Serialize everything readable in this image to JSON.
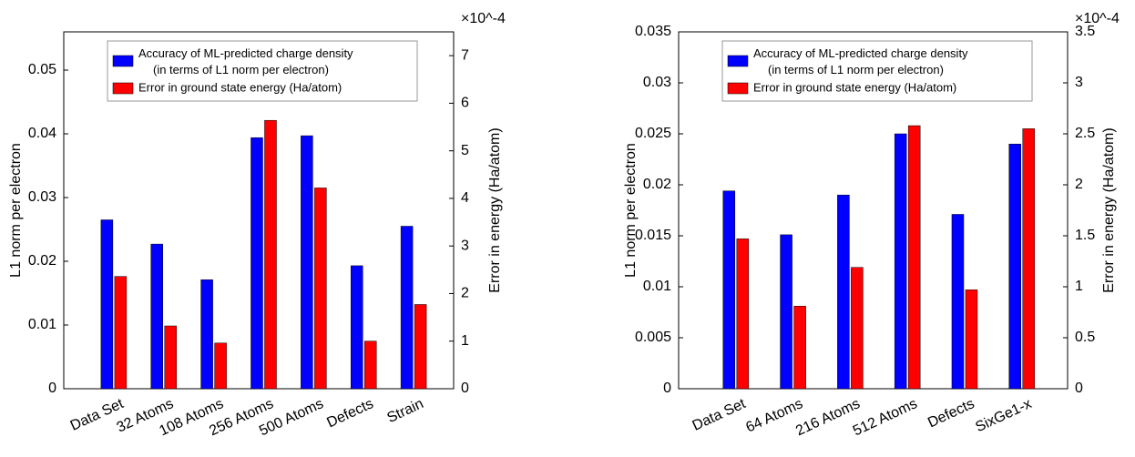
{
  "chart_data": [
    {
      "type": "bar",
      "categories": [
        "Data Set",
        "32 Atoms",
        "108 Atoms",
        "256 Atoms",
        "500 Atoms",
        "Defects",
        "Strain"
      ],
      "ylabel": "L1 norm per electron",
      "y2label": "Error in energy (Ha/atom)",
      "y2_multiplier": "×10^-4",
      "ylim": [
        0,
        0.056
      ],
      "yticks": [
        0,
        0.01,
        0.02,
        0.03,
        0.04,
        0.05
      ],
      "y2lim": [
        0,
        7.5
      ],
      "y2ticks": [
        0,
        1,
        2,
        3,
        4,
        5,
        6,
        7
      ],
      "series": [
        {
          "name": "Accuracy of ML-predicted charge density (in terms of L1 norm per electron)",
          "color": "#0000ff",
          "values": [
            0.0265,
            0.0227,
            0.0171,
            0.0394,
            0.0397,
            0.0193,
            0.0255
          ]
        },
        {
          "name": "Error in ground state energy (Ha/atom)",
          "color": "#ff0000",
          "axis": "y2",
          "values": [
            2.36,
            1.32,
            0.96,
            5.64,
            4.22,
            1.0,
            1.77
          ]
        }
      ]
    },
    {
      "type": "bar",
      "categories": [
        "Data Set",
        "64 Atoms",
        "216 Atoms",
        "512 Atoms",
        "Defects",
        "SixGe1-x"
      ],
      "ylabel": "L1 norm per electron",
      "y2label": "Error in energy (Ha/atom)",
      "y2_multiplier": "×10^-4",
      "ylim": [
        0,
        0.035
      ],
      "yticks": [
        0,
        0.005,
        0.01,
        0.015,
        0.02,
        0.025,
        0.03,
        0.035
      ],
      "y2lim": [
        0,
        3.5
      ],
      "y2ticks": [
        0,
        0.5,
        1,
        1.5,
        2,
        2.5,
        3,
        3.5
      ],
      "series": [
        {
          "name": "Accuracy of ML-predicted charge density (in terms of L1 norm per electron)",
          "color": "#0000ff",
          "values": [
            0.0194,
            0.0151,
            0.019,
            0.025,
            0.0171,
            0.024
          ]
        },
        {
          "name": "Error in ground state energy (Ha/atom)",
          "color": "#ff0000",
          "axis": "y2",
          "values": [
            1.47,
            0.81,
            1.19,
            2.58,
            0.97,
            2.55
          ]
        }
      ]
    }
  ]
}
